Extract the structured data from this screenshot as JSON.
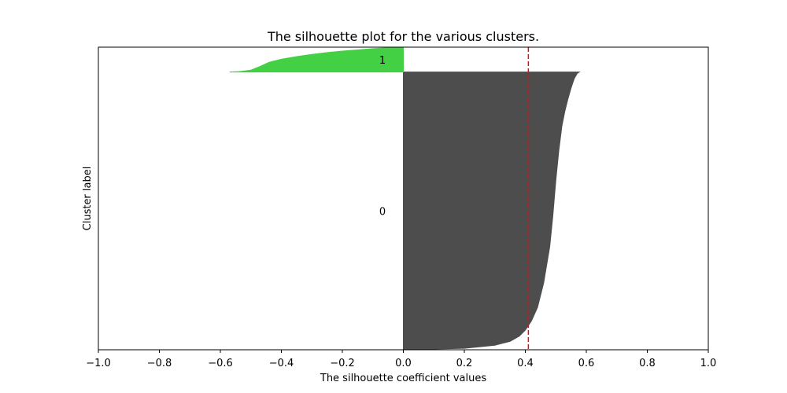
{
  "chart_data": {
    "type": "area",
    "title": "The silhouette plot for the various clusters.",
    "xlabel": "The silhouette coefficient values",
    "ylabel": "Cluster label",
    "xlim": [
      -1.0,
      1.0
    ],
    "ylim": [
      0,
      100
    ],
    "x_ticks": [
      -1.0,
      -0.8,
      -0.6,
      -0.4,
      -0.2,
      0.0,
      0.2,
      0.4,
      0.6,
      0.8,
      1.0
    ],
    "x_tick_labels": [
      "−1.0",
      "−0.8",
      "−0.6",
      "−0.4",
      "−0.2",
      "0.0",
      "0.2",
      "0.4",
      "0.6",
      "0.8",
      "1.0"
    ],
    "y_ticks": [],
    "grid": false,
    "average_silhouette": 0.41,
    "average_line_color": "#ff0000",
    "clusters": [
      {
        "label": "0",
        "color": "#4d4d4d",
        "y_range": [
          0,
          91.8
        ],
        "profile": [
          [
            0.0,
            0.0
          ],
          [
            0.2,
            0.5
          ],
          [
            0.3,
            1.5
          ],
          [
            0.35,
            2.8
          ],
          [
            0.38,
            4.5
          ],
          [
            0.4,
            6.5
          ],
          [
            0.42,
            9.5
          ],
          [
            0.44,
            14
          ],
          [
            0.46,
            22
          ],
          [
            0.48,
            34
          ],
          [
            0.49,
            44
          ],
          [
            0.5,
            56
          ],
          [
            0.51,
            66
          ],
          [
            0.52,
            74
          ],
          [
            0.53,
            79
          ],
          [
            0.54,
            83
          ],
          [
            0.55,
            86.5
          ],
          [
            0.56,
            89.5
          ],
          [
            0.57,
            91.3
          ],
          [
            0.577,
            91.8
          ]
        ]
      },
      {
        "label": "1",
        "color": "#44d044",
        "y_range": [
          91.8,
          100
        ],
        "profile": [
          [
            -0.57,
            91.8
          ],
          [
            -0.54,
            91.9
          ],
          [
            -0.5,
            92.4
          ],
          [
            -0.47,
            93.6
          ],
          [
            -0.44,
            95.0
          ],
          [
            -0.4,
            96.0
          ],
          [
            -0.35,
            96.9
          ],
          [
            -0.3,
            97.6
          ],
          [
            -0.25,
            98.2
          ],
          [
            -0.2,
            98.7
          ],
          [
            -0.15,
            99.1
          ],
          [
            -0.1,
            99.5
          ],
          [
            -0.05,
            99.8
          ],
          [
            0.0,
            100
          ],
          [
            0.02,
            100
          ]
        ]
      }
    ]
  }
}
